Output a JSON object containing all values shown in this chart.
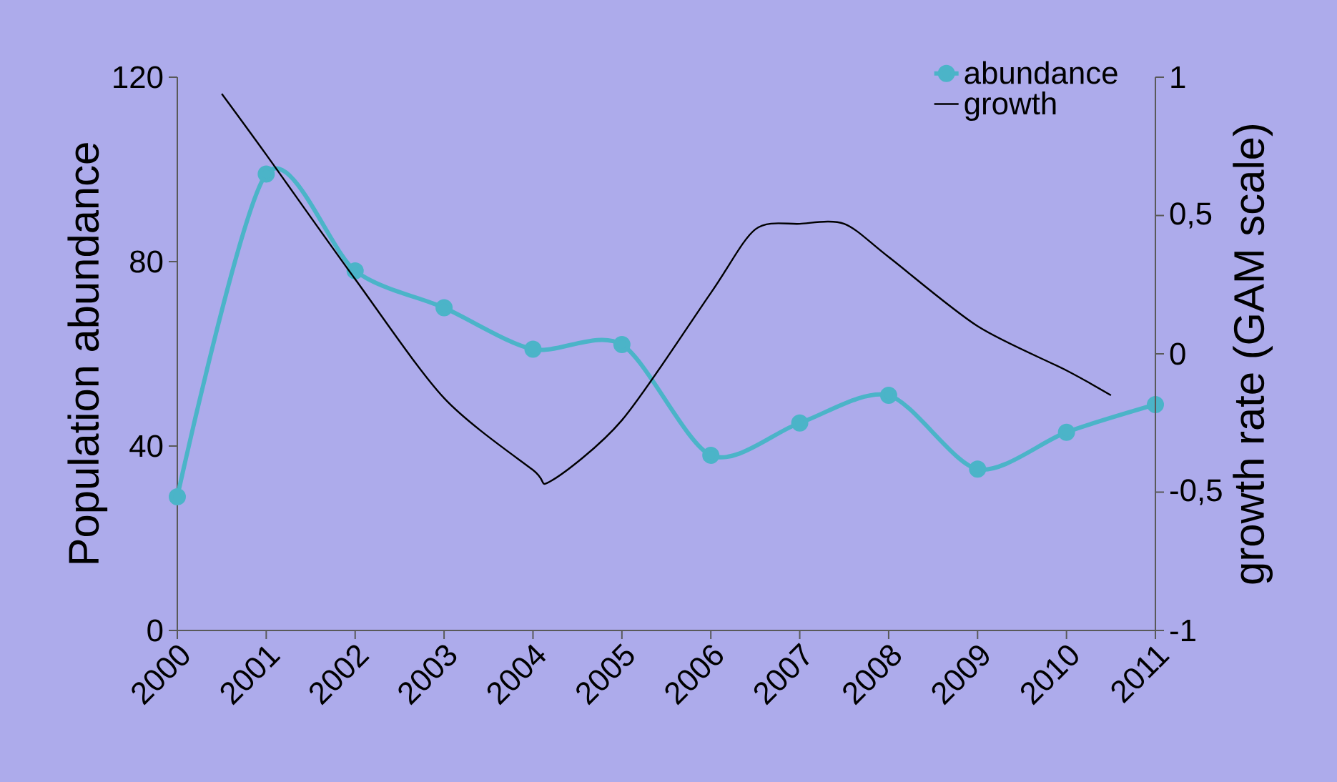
{
  "chart_data": {
    "type": "line",
    "xlabel": null,
    "ylabel": "Population abundance",
    "y2label": "growth rate (GAM scale)",
    "x": [
      2000,
      2001,
      2002,
      2003,
      2004,
      2005,
      2006,
      2007,
      2008,
      2009,
      2010,
      2011
    ],
    "xlim": [
      2000,
      2011
    ],
    "xticks": [
      2000,
      2001,
      2002,
      2003,
      2004,
      2005,
      2006,
      2007,
      2008,
      2009,
      2010,
      2011
    ],
    "ylim": [
      0,
      120
    ],
    "yticks": [
      0,
      40,
      80,
      120
    ],
    "y2lim": [
      -1,
      1
    ],
    "y2ticks": [
      -1,
      {
        "value": -0.5,
        "label": "-0,5"
      },
      0,
      {
        "value": 0.5,
        "label": "0,5"
      },
      1
    ],
    "series": [
      {
        "name": "abundance",
        "color": "#4bb4c8",
        "marker": "circle",
        "values": [
          29,
          99,
          78,
          70,
          61,
          62,
          38,
          45,
          51,
          35,
          43,
          49
        ]
      },
      {
        "name": "growth",
        "color": "#000000",
        "axis": "y2",
        "x": [
          2000.5,
          2001,
          2002,
          2003,
          2004,
          2004.2,
          2005,
          2006,
          2006.5,
          2007,
          2007.5,
          2008,
          2009,
          2010,
          2010.5
        ],
        "values": [
          0.94,
          0.72,
          0.27,
          -0.16,
          -0.42,
          -0.46,
          -0.24,
          0.22,
          0.45,
          0.47,
          0.47,
          0.35,
          0.1,
          -0.06,
          -0.15
        ]
      }
    ],
    "legend": "top right"
  }
}
